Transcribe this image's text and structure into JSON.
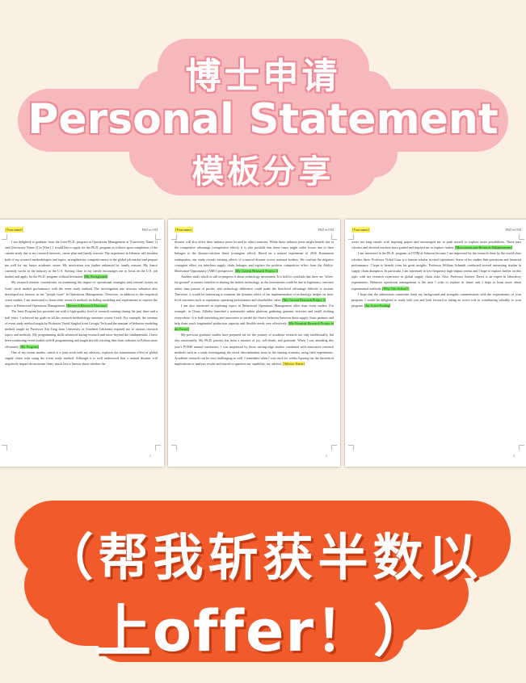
{
  "header": {
    "line1": "博士申请",
    "line2": "Personal Statement",
    "line3": "模板分享"
  },
  "pages": [
    {
      "name_tag": "[Your name]",
      "header_right": "PhD in OM",
      "body_intro": "I am delighted to graduate from the Joint Ph.D. program in Operations Management at [University Name 1] and [University Name 2] in [Year]. I would like to apply for the Ph.D. program as follows upon completion of the current study due to my research interests, career plan and family reasons. The experience at Johnson will broaden both of my research methodologies and topics, strengthen my competitiveness in the global job market and prepare me well for my future academic career. My motivation was further enhanced by family reasons. My fiancé currently works in the industry in the U.S. Staying close to my family encourages me to focus on the U.S. job market and apply for the Ph.D. program without hesitation.",
      "tag1": "[My Background]",
      "body2": "My research interest concentrates on examining the impact of operational strategies and external events on firms' stock market performance with the event study method. The investigation into investor valuation also developed my interest in the \"people issue\" in Operations Management. Therefore, in addition to the empirical event studies, I am motivated to learn other research methods including modeling and experiments to explore the topics in Behavioral Operations Management.",
      "tag2": "[Research Research Direction]",
      "body3": "The Joint Program has provided me with a high-quality level of research training during the past three and a half years. I achieved my goals in all the research methodology seminars course I took. For example, the seminar of event study method taught by Professor Vinod Singhal from Georgia Tech and the seminar of behavior modeling method taught by Professor Xia Yang from University of Southern California exposed me to various research topics and methods. My programming skills advanced during research and more beyond the fundamentals. I have been conducting event studies with R programming and taught myself crawling data from websites in Python more efficiently.",
      "tag3": "[My Progress]",
      "body4": "One of my recent studies, which is a joint work with my advisors, explores the transmission effect of global supply chain risks using the event study method. Although it is well understood that a natural disaster will negatively impact downstream firms, much less is known about whether the",
      "page_num": "1"
    },
    {
      "name_tag": "[Your name]",
      "header_right": "PhD in OM",
      "body1": "disaster will also affect their industry peers located in other countries. While these industry peers might benefit due to the competitive advantage (competitive effect), it is also possible that these firms might suffer losses due to their linkages to the disaster-stricken firms (contagion effect). Based on a natural experiment of 2016 Kumamoto earthquakes, our study reveals existing effects of a natural disaster across national borders. We confirm the negative contagion effect via interfirm supply chain linkages and explain the positive competitive effect from the Ability-Motivation-Opportunity (AMO) perspective.",
      "tag1": "[My Current Research Project 1]",
      "body2": "Another study which is still in progress is about technology investment. It is bold to conclude that there are \"silver-for-ground\" economic benefits in sharing the hottest technology, as the investments could be due to legitimacy concerns rather than pursuit of profits, and technology difference could make the firm-level advantage difficult to sustain. Therefore, it would be interesting to examine the dynamic effect of the implementation of technology hedges on firm-level outcomes such as reputation, operating performance and shareholder value.",
      "tag2": "[My Current Research Project 2]",
      "body3": "I am also interested in exploring topics in Behavioral Operations Management other than event studies. For example, in China, Alibaba launched a nationwide online platform gathering garment factories and small clothing everywhere. It is both interesting and innovative to model the choice behavior between these supply chain partners and help them reach fragmented production capacity and flexible needs very effectively.",
      "tag3": "[My Potential Research Project in the Future]",
      "body4": "My previous graduate studies have prepared me for the journey of academic research not only intellectually, but also emotionally. My Ph.D. journey has been a mixture of joy, self-doubt, and gratitude. When I was attending this year's POMS annual conference, I was impressed by those cutting-edge studies combined with innovative research methods such as a study investigating the racial discrimination issue in the sharing economy using field experiments. Academic research can be very challenging as well. I remember when I was stuck for weeks figuring out the theoretical implications of analysis results and started to question my capability, my advisor,",
      "tag4": "[Advisor Name]",
      "page_num": "2"
    },
    {
      "name_tag": "[Your name]",
      "header_right": "PhD in OM",
      "body1": "wrote me long emails with inspiring papers and encouraged me to push myself to explore more possibilities. These past scholars and devoted teachers have guided and inspired me to explore further.",
      "tag1": "[Motivations and Research Enlightenment]",
      "body2": "I am interested in the Ph.D. program in OTIM at Johnson because I am impressed by the research done by the world-class scholars there. Professor Vishal Gaur is a famous scholar in retail operations. Some of his studies link operations and financial performance. I hope to benefit from his great insights. Professor William Schmidt conducted several interesting studies in supply chain disruption. In particular, I am interested in low-frequency high-impact events and I hope to explore further on this topic with my research experience in global supply chain risks. Also, Professor Andrew Davis is an expert in laboratory experiments. Behavior operations management is the area I wish to explore in future and I hope to learn more about experimental methods.",
      "tag2": "[Why This School?]",
      "body3": "I hope that the admissions committee finds my background and strengths commensurate with the requirements of your program. I would be delighted to study with you and look forward to taking an active role in contributing valuably to your program.",
      "tag3": "[An Active Ending]",
      "page_num": "3"
    }
  ],
  "footer": {
    "line1": "（帮我斩获半数以",
    "line2": "上offer！）"
  },
  "colors": {
    "background": "#fbf1e3",
    "top_cloud": "#f7b8bd",
    "title_outline": "#ee8a93",
    "bottom_cloud": "#f15a2b",
    "highlight_yellow": "#fff35a",
    "highlight_green": "#7ff26a"
  }
}
